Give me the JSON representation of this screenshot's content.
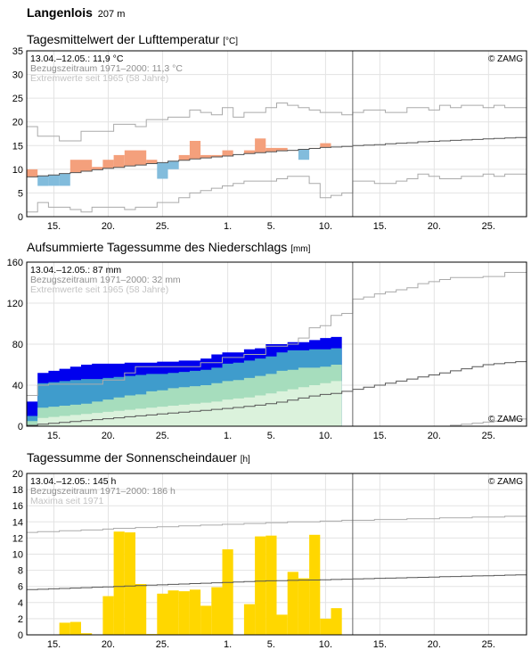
{
  "station": {
    "name": "Langenlois",
    "altitude": "207 m"
  },
  "days_axis": {
    "start": "13.04.",
    "end": "28.05.",
    "ticks": [
      {
        "label": "15.",
        "day": 2
      },
      {
        "label": "20.",
        "day": 7
      },
      {
        "label": "25.",
        "day": 12
      },
      {
        "label": "1.",
        "day": 18
      },
      {
        "label": "5.",
        "day": 22
      },
      {
        "label": "10.",
        "day": 27
      },
      {
        "label": "15.",
        "day": 32
      },
      {
        "label": "20.",
        "day": 37
      },
      {
        "label": "25.",
        "day": 42
      }
    ],
    "current_day_line": 30
  },
  "copyright": "© ZAMG",
  "colors": {
    "warm": "#f4a07c",
    "cold": "#82bcdc",
    "precip_fill": "#0000ee",
    "precip_blue": "#3f9ccc",
    "precip_green": "#a6ddbd",
    "precip_lightgreen": "#dbf2dc",
    "sun": "#ffd700",
    "grid": "#e3e3e3",
    "ref_line": "#555555",
    "extreme_line": "#aaaaaa"
  },
  "chart_data": [
    {
      "id": "temperature",
      "type": "bar",
      "title": "Tagesmittelwert der Lufttemperatur",
      "unit": "[°C]",
      "ylim": [
        0,
        35
      ],
      "yticks": [
        0,
        5,
        10,
        15,
        20,
        25,
        30,
        35
      ],
      "info": [
        "13.04.–12.05.: 11,9 °C",
        "Bezugszeitraum 1971–2000: 11,3 °C",
        "Extremwerte seit 1965 (58 Jahre)"
      ],
      "series": [
        {
          "name": "Tagesmittel",
          "values": [
            10,
            6.5,
            6.5,
            6.5,
            12,
            12,
            10.5,
            12,
            13,
            14,
            14,
            12,
            8,
            10,
            13,
            16,
            13,
            13,
            14,
            13,
            14,
            16.5,
            14.5,
            14.5,
            14,
            12,
            14.5,
            15.5
          ]
        },
        {
          "name": "Mittel 1971–2000",
          "values": [
            8.4,
            8.6,
            8.8,
            9.1,
            9.3,
            9.6,
            9.9,
            10.2,
            10.4,
            10.7,
            10.9,
            11.2,
            11.4,
            11.7,
            11.9,
            12.2,
            12.4,
            12.6,
            12.8,
            13.1,
            13.3,
            13.5,
            13.7,
            13.9,
            14.0,
            14.2,
            14.4,
            14.6,
            14.7,
            14.8,
            15.0,
            15.1,
            15.2,
            15.4,
            15.5,
            15.6,
            15.8,
            15.9,
            16.0,
            16.1,
            16.2,
            16.3,
            16.4,
            16.5,
            16.6,
            16.7
          ]
        },
        {
          "name": "Maximum",
          "values": [
            19,
            17,
            17,
            16,
            16,
            18,
            18,
            18,
            19.5,
            19.5,
            19,
            20.5,
            20.5,
            21,
            21,
            22.5,
            22,
            21.5,
            23,
            21,
            22,
            22,
            23,
            24,
            23.5,
            23,
            22.5,
            22,
            22,
            21.5,
            22,
            22.5,
            22.5,
            22,
            22,
            23,
            23,
            22.5,
            23.5,
            23,
            23.5,
            23.5,
            23,
            23.5,
            23,
            23
          ]
        },
        {
          "name": "Minimum",
          "values": [
            1,
            3,
            2,
            2,
            1.5,
            1,
            2,
            2,
            2,
            1.5,
            2,
            2,
            3,
            3,
            4,
            5,
            5.5,
            6,
            6.5,
            7,
            7.5,
            7.5,
            7.5,
            8,
            8.5,
            8.5,
            7,
            4,
            4.5,
            5,
            7.5,
            7.5,
            7,
            7,
            7.5,
            8,
            9,
            8.5,
            8,
            8,
            8.5,
            8.5,
            9,
            8.5,
            9,
            9
          ]
        }
      ]
    },
    {
      "id": "precipitation",
      "type": "area",
      "title": "Aufsummierte Tagessumme des Niederschlags",
      "unit": "[mm]",
      "ylim": [
        0,
        160
      ],
      "yticks": [
        0,
        40,
        80,
        120,
        160
      ],
      "info": [
        "13.04.–12.05.: 87 mm",
        "Bezugszeitraum 1971–2000: 32 mm",
        "Extremwerte seit 1965 (58 Jahre)"
      ],
      "series": [
        {
          "name": "Aufsummiert",
          "values": [
            24,
            52,
            54,
            56,
            58,
            60,
            61,
            61,
            61,
            62,
            62,
            62,
            63,
            63,
            64,
            64,
            66,
            70,
            72,
            72,
            75,
            76,
            80,
            80,
            82,
            82,
            84,
            86,
            87
          ]
        },
        {
          "name": "Band oben",
          "values": [
            10,
            42,
            43,
            44,
            45,
            46,
            46,
            47,
            48,
            49,
            50,
            51,
            51,
            52,
            53,
            54,
            55,
            57,
            61,
            62,
            64,
            66,
            68,
            72,
            74,
            74,
            75,
            75,
            76
          ]
        },
        {
          "name": "Band mitte",
          "values": [
            5,
            18,
            19,
            20,
            21,
            22,
            24,
            26,
            28,
            30,
            31,
            34,
            35,
            37,
            38,
            39,
            40,
            42,
            44,
            45,
            47,
            49,
            51,
            54,
            55,
            57,
            57,
            58,
            60
          ]
        },
        {
          "name": "Band unten",
          "values": [
            1,
            8,
            9,
            10,
            11,
            12,
            13,
            14,
            15,
            16,
            17,
            18,
            19,
            20,
            21,
            22,
            23,
            24,
            26,
            27,
            28,
            30,
            32,
            34,
            36,
            38,
            40,
            42,
            44
          ]
        },
        {
          "name": "Maximum",
          "values": [
            30,
            40,
            41,
            41,
            41,
            41,
            41,
            45,
            45,
            52,
            58,
            58,
            58,
            58,
            58,
            58,
            62,
            62,
            67,
            67,
            70,
            70,
            78,
            78,
            80,
            86,
            96,
            98,
            108,
            110,
            124,
            126,
            129,
            131,
            133,
            135,
            139,
            141,
            143,
            145,
            145,
            145,
            146,
            146,
            150,
            150
          ]
        },
        {
          "name": "Mittel 1971–2000",
          "values": [
            0.9,
            1.9,
            2.8,
            3.7,
            4.6,
            5.5,
            6.4,
            7.3,
            8.2,
            9.2,
            10.1,
            11.0,
            11.9,
            12.8,
            13.7,
            14.6,
            15.5,
            16.4,
            17.3,
            18.3,
            19.4,
            20.5,
            22.0,
            23.5,
            25.5,
            27.5,
            29.5,
            31.0,
            32.0,
            34.0,
            36.0,
            38.0,
            40.0,
            42.0,
            44.0,
            46.0,
            48.0,
            50.0,
            52.0,
            54.0,
            56.0,
            58.0,
            60.0,
            61.0,
            62.0,
            63.0
          ]
        },
        {
          "name": "Minimum",
          "values": [
            0,
            0,
            0,
            0,
            0,
            0,
            0,
            0,
            0,
            0,
            0,
            0,
            0,
            0,
            0,
            0,
            0,
            0,
            0,
            0,
            0,
            0,
            0,
            0,
            0,
            0,
            0,
            0,
            0,
            0,
            0,
            0,
            0,
            0,
            0,
            0,
            0,
            0,
            0,
            1,
            2,
            3,
            4,
            5,
            6,
            7
          ]
        }
      ]
    },
    {
      "id": "sunshine",
      "type": "bar",
      "title": "Tagessumme der Sonnenscheindauer",
      "unit": "[h]",
      "ylim": [
        0,
        20
      ],
      "yticks": [
        0,
        2,
        4,
        6,
        8,
        10,
        12,
        14,
        16,
        18,
        20
      ],
      "info": [
        "13.04.–12.05.: 145 h",
        "Bezugszeitraum 1971–2000: 186 h",
        "Maxima seit 1971"
      ],
      "series": [
        {
          "name": "Sonnenscheindauer",
          "values": [
            0,
            0,
            0,
            1.5,
            1.6,
            0.2,
            0,
            4.8,
            12.8,
            12.7,
            6.3,
            0.1,
            5.1,
            5.5,
            5.4,
            5.6,
            3.6,
            5.9,
            10.6,
            0,
            3.8,
            12.2,
            12.3,
            2.5,
            7.8,
            7.0,
            12.4,
            2.0,
            3.3
          ]
        },
        {
          "name": "Mittel 1971–2000",
          "values": [
            5.6,
            5.65,
            5.7,
            5.75,
            5.8,
            5.85,
            5.9,
            5.95,
            6.0,
            6.05,
            6.1,
            6.15,
            6.2,
            6.25,
            6.3,
            6.35,
            6.4,
            6.45,
            6.5,
            6.55,
            6.6,
            6.65,
            6.7,
            6.72,
            6.75,
            6.78,
            6.8,
            6.83,
            6.86,
            6.9,
            6.93,
            6.96,
            7.0,
            7.03,
            7.06,
            7.1,
            7.13,
            7.16,
            7.2,
            7.23,
            7.26,
            7.3,
            7.33,
            7.36,
            7.4,
            7.43
          ]
        },
        {
          "name": "Maximum",
          "values": [
            12.7,
            12.8,
            12.8,
            12.9,
            12.9,
            13.0,
            13.0,
            13.1,
            13.2,
            13.2,
            13.3,
            13.3,
            13.4,
            13.4,
            13.5,
            13.5,
            13.6,
            13.6,
            13.7,
            13.7,
            13.8,
            13.8,
            13.9,
            13.9,
            14.0,
            14.0,
            14.0,
            14.1,
            14.1,
            14.2,
            14.2,
            14.2,
            14.3,
            14.3,
            14.3,
            14.4,
            14.4,
            14.4,
            14.5,
            14.5,
            14.5,
            14.6,
            14.6,
            14.6,
            14.7,
            14.7
          ]
        }
      ]
    }
  ]
}
